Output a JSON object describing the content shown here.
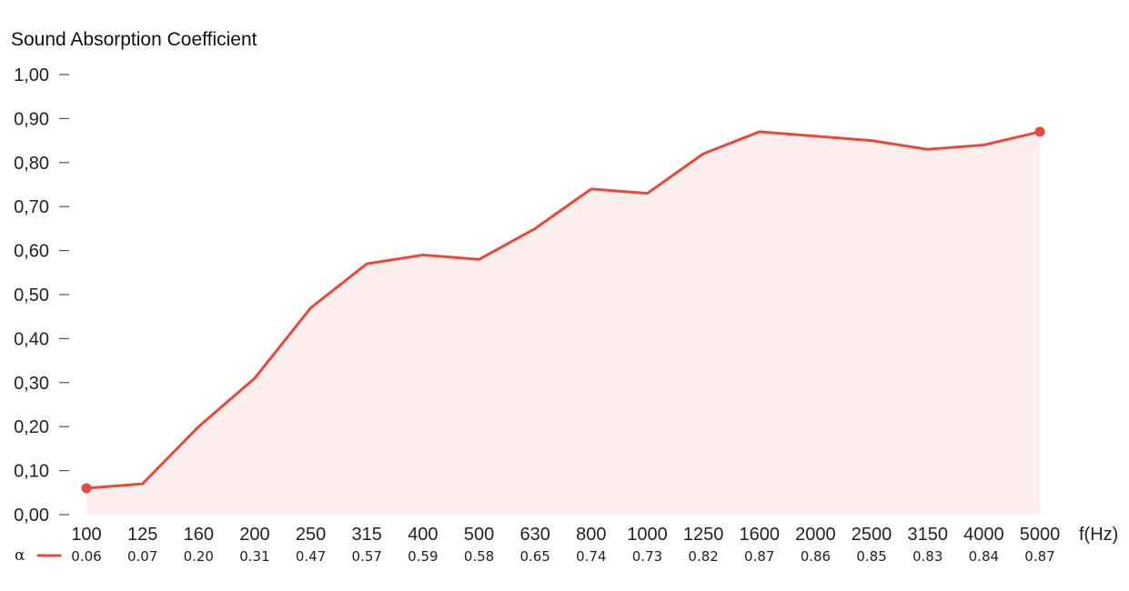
{
  "chart_data": {
    "type": "area",
    "title": "Sound Absorption Coefficient",
    "xlabel": "f(Hz)",
    "ylabel": "",
    "ylim": [
      0,
      1
    ],
    "y_ticks": [
      "0,00",
      "0,10",
      "0,20",
      "0,30",
      "0,40",
      "0,50",
      "0,60",
      "0,70",
      "0,80",
      "0,90",
      "1,00"
    ],
    "categories": [
      "100",
      "125",
      "160",
      "200",
      "250",
      "315",
      "400",
      "500",
      "630",
      "800",
      "1000",
      "1250",
      "1600",
      "2000",
      "2500",
      "3150",
      "4000",
      "5000"
    ],
    "series": [
      {
        "legend_symbol": "α",
        "values": [
          0.06,
          0.07,
          0.2,
          0.31,
          0.47,
          0.57,
          0.59,
          0.58,
          0.65,
          0.74,
          0.73,
          0.82,
          0.87,
          0.86,
          0.85,
          0.83,
          0.84,
          0.87
        ],
        "value_labels": [
          "0.06",
          "0.07",
          "0.20",
          "0.31",
          "0.47",
          "0.57",
          "0.59",
          "0.58",
          "0.65",
          "0.74",
          "0.73",
          "0.82",
          "0.87",
          "0.86",
          "0.85",
          "0.83",
          "0.84",
          "0.87"
        ]
      }
    ],
    "grid": false,
    "colors": {
      "line": "#e8493a",
      "fill": "#fdeeee",
      "tick": "#555555"
    }
  }
}
